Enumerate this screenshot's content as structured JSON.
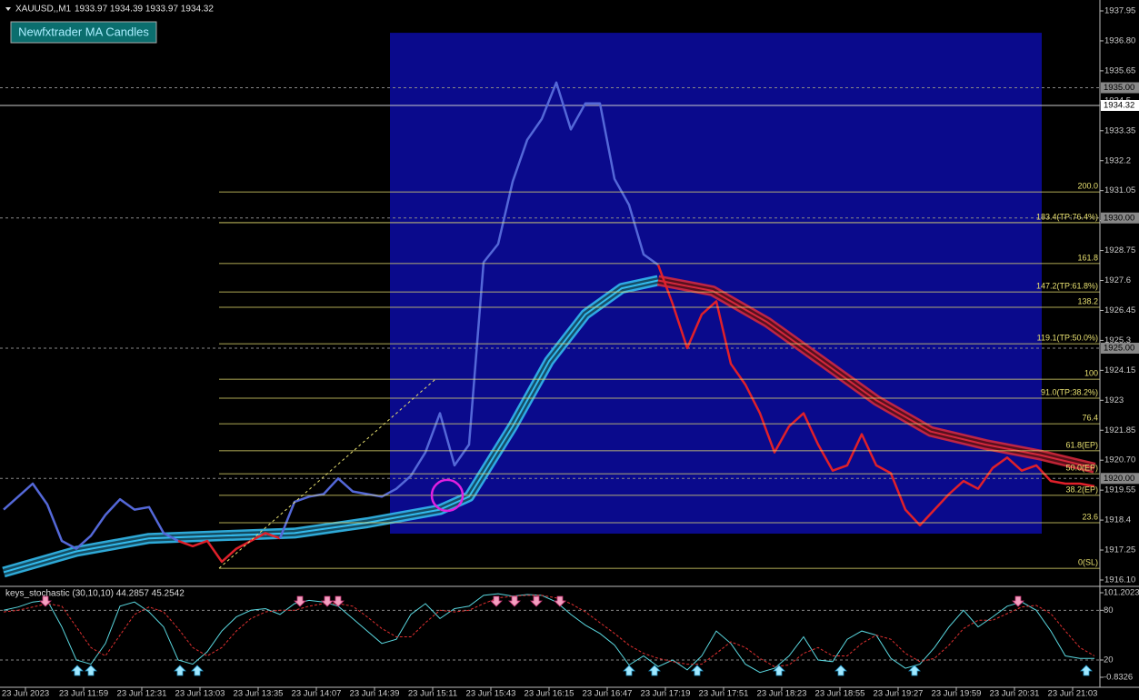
{
  "header": {
    "symbol": "XAUUSD,,M1",
    "ohlc": "1933.97 1934.39 1933.97 1934.32",
    "button": "Newfxtrader MA Candles"
  },
  "price": {
    "ylim": [
      1916.1,
      1937.95
    ],
    "xlim": [
      -2,
      603
    ],
    "yticks": [
      1937.95,
      {
        "value": 1936.8,
        "label": "1936.80"
      },
      1935.65,
      1934.5,
      1933.35,
      1932.2,
      1931.05,
      1929.9,
      1928.75,
      1927.6,
      1926.45,
      1925.3,
      1924.15,
      1923,
      1921.85,
      {
        "value": 1920.7,
        "label": "1920.70"
      },
      1919.55,
      1918.4,
      1917.25,
      {
        "value": 1916.1,
        "label": "1916.10"
      }
    ],
    "levels": [
      {
        "value": 1935,
        "label": "1935.00"
      },
      {
        "value": 1930,
        "label": "1930.00"
      },
      {
        "value": 1925,
        "label": "1925.00"
      },
      {
        "value": 1920,
        "label": "1920.00"
      }
    ],
    "current": 1934.32,
    "xticks": [
      {
        "value": 12,
        "label": "23 Jun 2023"
      },
      {
        "value": 44,
        "label": "23 Jun 11:59"
      },
      {
        "value": 76,
        "label": "23 Jun 12:31"
      },
      {
        "value": 108,
        "label": "23 Jun 13:03"
      },
      {
        "value": 140,
        "label": "23 Jun 13:35"
      },
      {
        "value": 172,
        "label": "23 Jun 14:07"
      },
      {
        "value": 204,
        "label": "23 Jun 14:39"
      },
      {
        "value": 236,
        "label": "23 Jun 15:11"
      },
      {
        "value": 268,
        "label": "23 Jun 15:43"
      },
      {
        "value": 300,
        "label": "23 Jun 16:15"
      },
      {
        "value": 332,
        "label": "23 Jun 16:47"
      },
      {
        "value": 364,
        "label": "23 Jun 17:19"
      },
      {
        "value": 396,
        "label": "23 Jun 17:51"
      },
      {
        "value": 428,
        "label": "23 Jun 18:23"
      },
      {
        "value": 460,
        "label": "23 Jun 18:55"
      },
      {
        "value": 492,
        "label": "23 Jun 19:27"
      },
      {
        "value": 524,
        "label": "23 Jun 19:59"
      },
      {
        "value": 556,
        "label": "23 Jun 20:31"
      },
      {
        "value": 588,
        "label": "23 Jun 21:03"
      }
    ],
    "zone": {
      "start": 212.5,
      "end": 571,
      "top": 1937.11,
      "bottom": 1917.88,
      "color": "#0a0a8c"
    },
    "segments": [
      {
        "color": "#5468d8",
        "x": [
          0,
          8,
          16,
          24,
          32,
          40,
          48,
          56,
          64,
          72,
          80,
          88,
          96
        ],
        "values": [
          1918.8,
          1919.3,
          1919.8,
          1919.0,
          1917.6,
          1917.3,
          1917.8,
          1918.6,
          1919.2,
          1918.8,
          1918.9,
          1917.9,
          1917.6
        ]
      },
      {
        "color": "#e0202a",
        "x": [
          96,
          104,
          112,
          120,
          128,
          136,
          144,
          152
        ],
        "values": [
          1917.6,
          1917.4,
          1917.6,
          1916.8,
          1917.3,
          1917.6,
          1917.9,
          1917.7
        ]
      },
      {
        "color": "#5468d8",
        "x": [
          152,
          160,
          168,
          176,
          184,
          192,
          200,
          208,
          216,
          224,
          232,
          240,
          248,
          256,
          264,
          272,
          280,
          288,
          296,
          304,
          312,
          320,
          328,
          336,
          344,
          352,
          360
        ],
        "values": [
          1917.7,
          1919.1,
          1919.3,
          1919.4,
          1920.0,
          1919.5,
          1919.4,
          1919.3,
          1919.6,
          1920.1,
          1921.0,
          1922.5,
          1920.5,
          1921.3,
          1928.3,
          1929.0,
          1931.4,
          1933.0,
          1933.8,
          1935.2,
          1933.4,
          1934.4,
          1934.4,
          1931.5,
          1930.5,
          1928.6,
          1928.2
        ]
      },
      {
        "color": "#e0202a",
        "x": [
          360,
          368,
          376,
          384,
          392,
          400,
          408,
          416,
          424,
          432,
          440,
          448,
          456,
          464,
          472,
          480,
          488,
          496,
          504,
          512,
          520,
          528,
          536,
          544,
          552,
          560,
          568,
          576,
          584,
          592,
          600
        ],
        "values": [
          1928.2,
          1926.7,
          1925.0,
          1926.3,
          1926.8,
          1924.4,
          1923.6,
          1922.5,
          1921.0,
          1922.0,
          1922.5,
          1921.3,
          1920.3,
          1920.5,
          1921.7,
          1920.5,
          1920.2,
          1918.8,
          1918.2,
          1918.8,
          1919.4,
          1919.9,
          1919.6,
          1920.4,
          1920.8,
          1920.3,
          1920.5,
          1919.9,
          1919.8,
          1919.8,
          1919.7
        ]
      }
    ],
    "ma": [
      {
        "color": "#33bbee",
        "x": [
          0,
          40,
          80,
          120,
          160,
          200,
          240,
          256,
          280,
          300,
          320,
          340,
          360
        ],
        "values": [
          1916.4,
          1917.2,
          1917.7,
          1917.8,
          1917.9,
          1918.3,
          1918.8,
          1919.3,
          1922.0,
          1924.5,
          1926.3,
          1927.3,
          1927.6
        ]
      },
      {
        "color": "#d4283c",
        "x": [
          360,
          390,
          420,
          450,
          480,
          510,
          540,
          570,
          600
        ],
        "values": [
          1927.6,
          1927.2,
          1926.0,
          1924.5,
          1923.0,
          1921.8,
          1921.3,
          1920.9,
          1920.4
        ]
      }
    ],
    "fib": {
      "start": 118.5,
      "color": "#e8e070",
      "levels": [
        {
          "value": 1931.0,
          "label": "200.0"
        },
        {
          "value": 1929.82,
          "label": "183.4(TP:76.4%)"
        },
        {
          "value": 1928.25,
          "label": "161.8"
        },
        {
          "value": 1927.16,
          "label": "147.2(TP:61.8%)"
        },
        {
          "value": 1926.57,
          "label": "138.2"
        },
        {
          "value": 1925.17,
          "label": "119.1(TP:50.0%)"
        },
        {
          "value": 1923.81,
          "label": "100"
        },
        {
          "value": 1923.08,
          "label": "91.0(TP:38.2%)"
        },
        {
          "value": 1922.1,
          "label": "76.4"
        },
        {
          "value": 1921.06,
          "label": "61.8(EP)"
        },
        {
          "value": 1920.18,
          "label": "50.0(EP)"
        },
        {
          "value": 1919.35,
          "label": "38.2(EP)"
        },
        {
          "value": 1918.3,
          "label": "23.6"
        },
        {
          "value": 1916.55,
          "label": "0(SL)"
        }
      ]
    },
    "marker": {
      "x": 244,
      "y": 1919.35,
      "color": "#e020e0"
    }
  },
  "stochastic": {
    "title": "keys_stochastic (30,10,10) 44.2857 45.2542",
    "ylim": [
      -0.8326,
      101.2023
    ],
    "yticks": [
      101.2023,
      80,
      20,
      -0.8326
    ],
    "x": [
      0,
      8,
      16,
      24,
      32,
      40,
      48,
      56,
      64,
      72,
      80,
      88,
      96,
      104,
      112,
      120,
      128,
      136,
      144,
      152,
      160,
      168,
      176,
      184,
      192,
      200,
      208,
      216,
      224,
      232,
      240,
      248,
      256,
      264,
      272,
      280,
      288,
      296,
      304,
      312,
      320,
      328,
      336,
      344,
      352,
      360,
      368,
      376,
      384,
      392,
      400,
      408,
      416,
      424,
      432,
      440,
      448,
      456,
      464,
      472,
      480,
      488,
      496,
      504,
      512,
      520,
      528,
      536,
      544,
      552,
      560,
      568,
      576,
      584,
      592,
      600
    ],
    "main": {
      "color": "#5ad8e0",
      "values": [
        80,
        84,
        90,
        92,
        60,
        20,
        15,
        40,
        85,
        90,
        78,
        60,
        20,
        15,
        30,
        55,
        72,
        80,
        82,
        75,
        88,
        92,
        90,
        85,
        70,
        55,
        40,
        45,
        75,
        88,
        70,
        82,
        85,
        98,
        100,
        97,
        99,
        98,
        90,
        75,
        62,
        52,
        38,
        14,
        25,
        12,
        20,
        8,
        25,
        55,
        40,
        15,
        5,
        10,
        25,
        48,
        20,
        18,
        45,
        55,
        50,
        22,
        10,
        15,
        35,
        60,
        80,
        60,
        72,
        85,
        90,
        80,
        55,
        25,
        22,
        22
      ]
    },
    "signal": {
      "color": "#e03030",
      "values": [
        78,
        80,
        84,
        88,
        85,
        60,
        35,
        25,
        50,
        75,
        84,
        78,
        58,
        35,
        25,
        35,
        55,
        70,
        78,
        80,
        80,
        85,
        88,
        88,
        85,
        72,
        58,
        48,
        48,
        65,
        80,
        78,
        80,
        88,
        95,
        97,
        98,
        98,
        95,
        88,
        78,
        65,
        52,
        38,
        28,
        22,
        18,
        15,
        15,
        28,
        42,
        35,
        22,
        12,
        14,
        28,
        35,
        25,
        25,
        40,
        50,
        45,
        28,
        18,
        22,
        38,
        58,
        68,
        68,
        76,
        84,
        86,
        76,
        55,
        35,
        25
      ]
    },
    "sell_signals": [
      23,
      163,
      178,
      184,
      271,
      281,
      293,
      306,
      558
    ],
    "buy_signals": [
      40.5,
      48,
      97,
      106.5,
      344,
      358,
      381.5,
      426.5,
      460.5,
      501,
      595.5
    ]
  }
}
